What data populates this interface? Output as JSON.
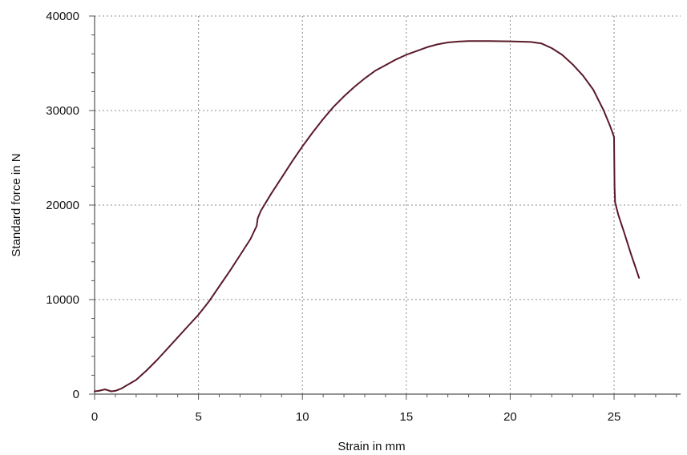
{
  "chart_data": {
    "type": "line",
    "xlabel": "Strain in mm",
    "ylabel": "Standard force in N",
    "xlim": [
      0,
      28.2
    ],
    "ylim": [
      0,
      40000
    ],
    "x_ticks": [
      0,
      5,
      10,
      15,
      20,
      25
    ],
    "x_tick_labels": [
      "0",
      "5",
      "10",
      "15",
      "20",
      "25"
    ],
    "y_ticks": [
      0,
      10000,
      20000,
      30000,
      40000
    ],
    "y_tick_labels": [
      "0",
      "10000",
      "20000",
      "30000",
      "40000"
    ],
    "x_minor_step": 1,
    "y_minor_step": 2000,
    "grid": true,
    "line_color": "#5a1a2a",
    "series": [
      {
        "x": [
          0,
          0.2,
          0.5,
          0.8,
          1.0,
          1.3,
          1.6,
          2.0,
          2.5,
          3.0,
          3.5,
          4.0,
          4.5,
          5.0,
          5.5,
          6.0,
          6.5,
          7.0,
          7.5,
          7.8,
          7.85,
          8.0,
          8.5,
          9.0,
          9.5,
          10.0,
          10.5,
          11.0,
          11.5,
          12.0,
          12.5,
          13.0,
          13.5,
          14.0,
          14.5,
          15.0,
          15.5,
          16.0,
          16.5,
          17.0,
          17.5,
          18.0,
          19.0,
          20.0,
          21.0,
          21.5,
          22.0,
          22.5,
          23.0,
          23.5,
          24.0,
          24.5,
          24.8,
          25.0,
          25.02,
          25.05,
          25.2,
          25.5,
          25.8,
          26.0,
          26.2
        ],
        "y": [
          300,
          350,
          500,
          300,
          350,
          600,
          1000,
          1500,
          2500,
          3600,
          4800,
          6000,
          7200,
          8400,
          9800,
          11400,
          13000,
          14700,
          16400,
          17800,
          18600,
          19400,
          21200,
          22900,
          24600,
          26200,
          27700,
          29100,
          30400,
          31500,
          32500,
          33400,
          34200,
          34800,
          35400,
          35900,
          36300,
          36700,
          37000,
          37200,
          37300,
          37350,
          37350,
          37320,
          37250,
          37100,
          36600,
          35900,
          34900,
          33700,
          32200,
          30000,
          28400,
          27200,
          22000,
          20300,
          19000,
          17000,
          14900,
          13600,
          12300
        ]
      }
    ]
  }
}
